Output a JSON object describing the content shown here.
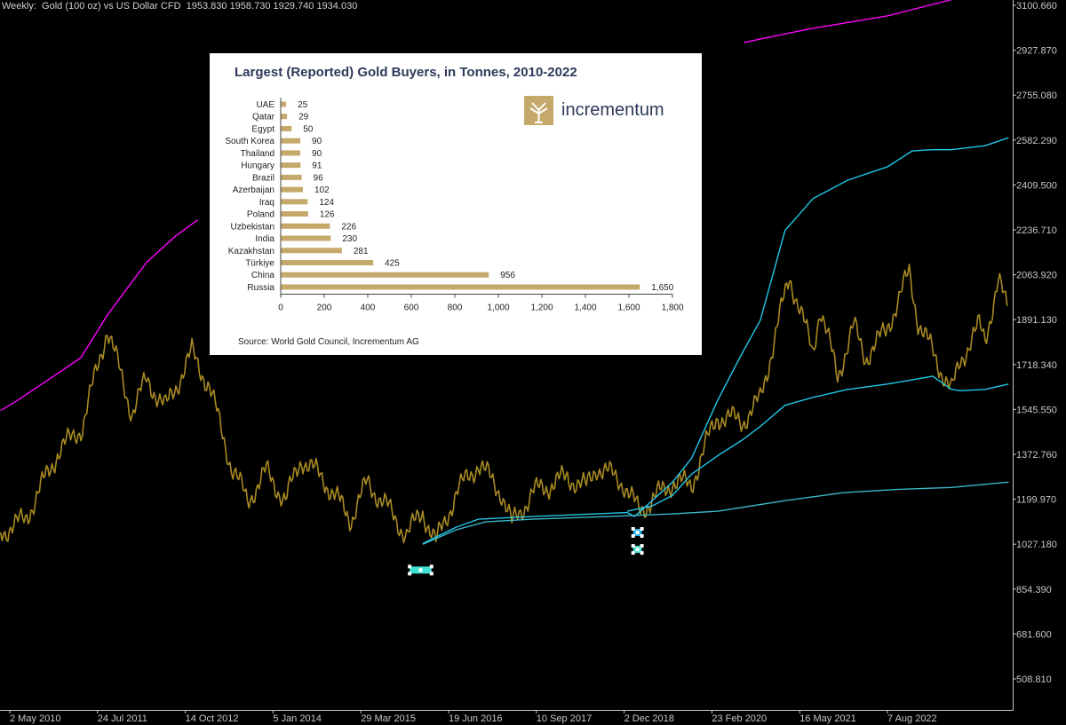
{
  "header": {
    "label": "Weekly:  Gold (100 oz) vs US Dollar CFD  1953.830 1958.730 1929.740 1934.030"
  },
  "colors": {
    "background": "#000000",
    "price": "#a88a22",
    "upper_band": "#ff00ff",
    "cyan_band": "#22c7e8",
    "outer_band": "#3ab8c8",
    "axis": "#c8c8c8",
    "marker_fill": "#3fe0d0",
    "marker_fill_alt": "#1fb0ee",
    "inset_bar": "#c4a96b",
    "inset_title": "#2e3a5a"
  },
  "inset": {
    "title": "Largest (Reported) Gold Buyers, in Tonnes, 2010-2022",
    "source": "Source: World Gold Council, Incrementum AG",
    "logo_text": "incrementum",
    "logo_icon": "tree-icon"
  },
  "chart_data": [
    {
      "type": "line",
      "title": "Weekly:  Gold (100 oz) vs US Dollar CFD  1953.830 1958.730 1929.740 1934.030",
      "x_tick_labels": [
        "2 May 2010",
        "24 Jul 2011",
        "14 Oct 2012",
        "5 Jan 2014",
        "29 Mar 2015",
        "19 Jun 2016",
        "10 Sep 2017",
        "2 Dec 2018",
        "23 Feb 2020",
        "16 May 2021",
        "7 Aug 2022"
      ],
      "y_tick_labels": [
        "3100.660",
        "2927.870",
        "2755.080",
        "2582.290",
        "2409.500",
        "2236.710",
        "2063.920",
        "1891.130",
        "1718.340",
        "1545.550",
        "1372.760",
        "1199.970",
        "1027.180",
        "854.390",
        "681.600",
        "508.810"
      ],
      "ylim": [
        430,
        3110
      ],
      "xlim": [
        "2010-04-01",
        "2023-07-15"
      ],
      "grid": false,
      "series": [
        {
          "role": "price",
          "x": [
            "2010-04-04",
            "2010-08-01",
            "2011-01-02",
            "2011-05-01",
            "2011-08-28",
            "2011-12-25",
            "2012-03-04",
            "2012-06-03",
            "2012-10-07",
            "2012-12-30",
            "2013-04-14",
            "2013-06-30",
            "2013-09-29",
            "2013-12-29",
            "2014-03-16",
            "2014-06-29",
            "2014-11-09",
            "2015-01-25",
            "2015-04-26",
            "2015-08-02",
            "2015-10-18",
            "2015-12-20",
            "2016-03-27",
            "2016-07-10",
            "2016-10-30",
            "2016-12-18",
            "2017-03-26",
            "2017-09-10",
            "2017-12-10",
            "2018-01-28",
            "2018-06-03",
            "2018-08-19",
            "2019-01-27",
            "2019-04-28",
            "2019-06-30",
            "2019-09-01",
            "2019-12-29",
            "2020-03-22",
            "2020-08-09",
            "2020-11-29",
            "2021-01-03",
            "2021-03-28",
            "2021-06-13",
            "2021-08-08",
            "2021-11-14",
            "2022-03-06",
            "2022-04-17",
            "2022-09-25",
            "2022-11-06",
            "2023-02-05",
            "2023-03-05",
            "2023-05-07",
            "2023-06-25"
          ],
          "y": [
            1100,
            1150,
            1400,
            1500,
            1870,
            1550,
            1680,
            1570,
            1780,
            1650,
            1350,
            1220,
            1330,
            1220,
            1380,
            1300,
            1150,
            1290,
            1200,
            1090,
            1180,
            1060,
            1250,
            1360,
            1250,
            1130,
            1250,
            1310,
            1270,
            1350,
            1290,
            1180,
            1290,
            1280,
            1420,
            1540,
            1520,
            1600,
            2070,
            1780,
            1950,
            1690,
            1880,
            1760,
            1860,
            2080,
            1900,
            1630,
            1750,
            1880,
            1830,
            2050,
            1930
          ]
        },
        {
          "role": "upper_band",
          "x": [
            "2010-04-04",
            "2010-06-27",
            "2011-01-02",
            "2011-04-24",
            "2011-08-28",
            "2012-03-04",
            "2012-07-22",
            "2012-11-04"
          ],
          "y": [
            1560,
            1600,
            1700,
            1760,
            1920,
            2120,
            2220,
            2280
          ]
        },
        {
          "role": "upper_band",
          "x": [
            "2020-01-05",
            "2020-11-08",
            "2021-11-21",
            "2022-09-18",
            "2022-12-18"
          ],
          "y": [
            2950,
            3000,
            3050,
            3110,
            3125
          ]
        },
        {
          "role": "cyan_band",
          "x": [
            "2015-10-18",
            "2016-03-27",
            "2016-07-10",
            "2017-03-26",
            "2017-08-27",
            "2018-06-24",
            "2018-07-29",
            "2019-01-27",
            "2019-04-28",
            "2019-09-01",
            "2019-12-29",
            "2020-03-22",
            "2020-07-19",
            "2020-11-29",
            "2021-05-16",
            "2021-11-21",
            "2022-03-20",
            "2022-06-26",
            "2022-09-25",
            "2023-03-05",
            "2023-06-25"
          ],
          "y": [
            1058,
            1120,
            1150,
            1160,
            1165,
            1175,
            1160,
            1290,
            1380,
            1600,
            1780,
            1900,
            2240,
            2360,
            2430,
            2480,
            2540,
            2545,
            2545,
            2560,
            2590
          ]
        },
        {
          "role": "cyan_band",
          "x": [
            "2018-06-24",
            "2018-10-21",
            "2019-01-27",
            "2019-04-28",
            "2019-09-01",
            "2019-12-29",
            "2020-03-22",
            "2020-07-19",
            "2020-11-29",
            "2021-05-16",
            "2021-11-21",
            "2022-04-17",
            "2022-06-26",
            "2022-09-25",
            "2022-11-06",
            "2023-03-05",
            "2023-06-25"
          ],
          "y": [
            1180,
            1200,
            1240,
            1320,
            1390,
            1450,
            1500,
            1580,
            1610,
            1640,
            1660,
            1680,
            1690,
            1640,
            1635,
            1640,
            1660
          ]
        },
        {
          "role": "outer_band",
          "x": [
            "2015-10-18",
            "2016-03-27",
            "2016-08-14",
            "2017-03-26",
            "2018-03-25",
            "2019-01-27",
            "2019-09-01",
            "2020-07-19",
            "2021-04-25",
            "2022-01-02",
            "2022-09-25",
            "2023-06-25"
          ],
          "y": [
            1055,
            1110,
            1140,
            1150,
            1160,
            1170,
            1180,
            1220,
            1250,
            1262,
            1270,
            1290
          ]
        }
      ],
      "markers": [
        {
          "x_from": "2015-08-16",
          "x_to": "2015-11-29",
          "y": 958,
          "style": "marker_fill"
        },
        {
          "x_from": "2018-07-22",
          "x_to": "2018-09-02",
          "y": 1100,
          "style": "marker_fill_alt"
        },
        {
          "x_from": "2018-07-22",
          "x_to": "2018-09-02",
          "y": 1036,
          "style": "marker_fill"
        }
      ]
    },
    {
      "type": "bar",
      "orientation": "horizontal",
      "title": "Largest (Reported) Gold Buyers, in Tonnes, 2010-2022",
      "categories": [
        "UAE",
        "Qatar",
        "Egypt",
        "South Korea",
        "Thailand",
        "Hungary",
        "Brazil",
        "Azerbaijan",
        "Iraq",
        "Poland",
        "Uzbekistan",
        "India",
        "Kazakhstan",
        "Türkiye",
        "China",
        "Russia"
      ],
      "values": [
        25,
        29,
        50,
        90,
        90,
        91,
        96,
        102,
        124,
        126,
        226,
        230,
        281,
        425,
        956,
        1650
      ],
      "value_labels": [
        "25",
        "29",
        "50",
        "90",
        "90",
        "91",
        "96",
        "102",
        "124",
        "126",
        "226",
        "230",
        "281",
        "425",
        "956",
        "1,650"
      ],
      "xlim": [
        0,
        1800
      ],
      "x_tick_labels": [
        "0",
        "200",
        "400",
        "600",
        "800",
        "1,000",
        "1,200",
        "1,400",
        "1,600",
        "1,800"
      ],
      "grid": false
    }
  ]
}
